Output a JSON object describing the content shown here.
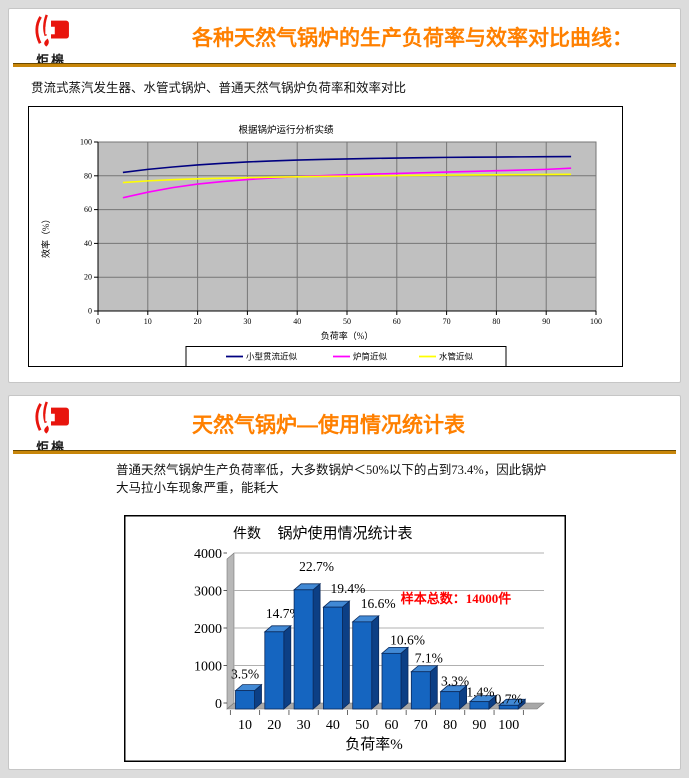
{
  "page": {
    "background": "#dcdcdc",
    "slide_background": "#ffffff"
  },
  "brand": {
    "logo_text": "炬槔",
    "logo_color": "#e8150d"
  },
  "accent": {
    "title_color": "#ff8000",
    "rule_color": "#c8860a"
  },
  "slides": [
    {
      "title": "各种天然气锅炉的生产负荷率与效率对比曲线：",
      "body": "贯流式蒸汽发生器、水管式锅炉、普通天然气锅炉负荷率和效率对比"
    },
    {
      "title": "天然气锅炉—使用情况统计表",
      "body": "普通天然气锅炉生产负荷率低，大多数锅炉＜50%以下的占到73.4%，因此锅炉大马拉小车现象严重，能耗大"
    }
  ],
  "chart_data": [
    {
      "type": "line",
      "title": "根据锅炉运行分析实绩",
      "xlabel": "负荷率（%）",
      "ylabel": "效率（%）",
      "xlim": [
        0,
        100
      ],
      "ylim": [
        0,
        100
      ],
      "x_ticks": [
        0,
        10,
        20,
        30,
        40,
        50,
        60,
        70,
        80,
        90,
        100
      ],
      "y_ticks": [
        0,
        20,
        40,
        60,
        80,
        100
      ],
      "grid": true,
      "plot_bg": "#c0c0c0",
      "grid_color": "#767676",
      "legend_position": "bottom",
      "x": [
        5,
        10,
        15,
        20,
        25,
        30,
        35,
        40,
        45,
        50,
        55,
        60,
        65,
        70,
        75,
        80,
        85,
        90,
        95
      ],
      "series": [
        {
          "name": "小型贯流近似",
          "color": "#000080",
          "values": [
            82,
            83.8,
            85.2,
            86.4,
            87.4,
            88.2,
            88.8,
            89.3,
            89.7,
            90.0,
            90.3,
            90.5,
            90.7,
            90.9,
            91.0,
            91.1,
            91.2,
            91.3,
            91.4
          ]
        },
        {
          "name": "炉筒近似",
          "color": "#ff00ff",
          "values": [
            67,
            70.3,
            73.0,
            75.1,
            76.6,
            77.8,
            78.7,
            79.5,
            80.1,
            80.6,
            81.0,
            81.4,
            81.8,
            82.2,
            82.6,
            83.0,
            83.4,
            83.8,
            84.5
          ]
        },
        {
          "name": "水管近似",
          "color": "#ffff00",
          "values": [
            76,
            77.0,
            77.7,
            78.2,
            78.6,
            78.9,
            79.2,
            79.4,
            79.6,
            79.8,
            80.0,
            80.1,
            80.3,
            80.4,
            80.5,
            80.6,
            80.7,
            80.8,
            80.9
          ]
        }
      ]
    },
    {
      "type": "bar",
      "style": "3d",
      "title": "锅炉使用情况统计表",
      "xlabel": "负荷率%",
      "ylabel": "件数",
      "categories": [
        "10",
        "20",
        "30",
        "40",
        "50",
        "60",
        "70",
        "80",
        "90",
        "100"
      ],
      "values": [
        490,
        2058,
        3178,
        2716,
        2324,
        1484,
        994,
        462,
        196,
        98
      ],
      "labels": [
        "3.5%",
        "14.7%",
        "22.7%",
        "19.4%",
        "16.6%",
        "10.6%",
        "7.1%",
        "3.3%",
        "1.4%",
        "0.7%"
      ],
      "annotation": {
        "text": "样本总数：14000件",
        "color": "#ff0000"
      },
      "ylim": [
        0,
        4000
      ],
      "y_ticks": [
        0,
        1000,
        2000,
        3000,
        4000
      ],
      "bar_color": "#1565c0",
      "bar_side_color": "#0c3f85",
      "bar_top_color": "#4189d5",
      "floor_color": "#a8a8a8",
      "wall_color": "#b8b8b8",
      "grid_color": "#b0b0b0"
    }
  ]
}
